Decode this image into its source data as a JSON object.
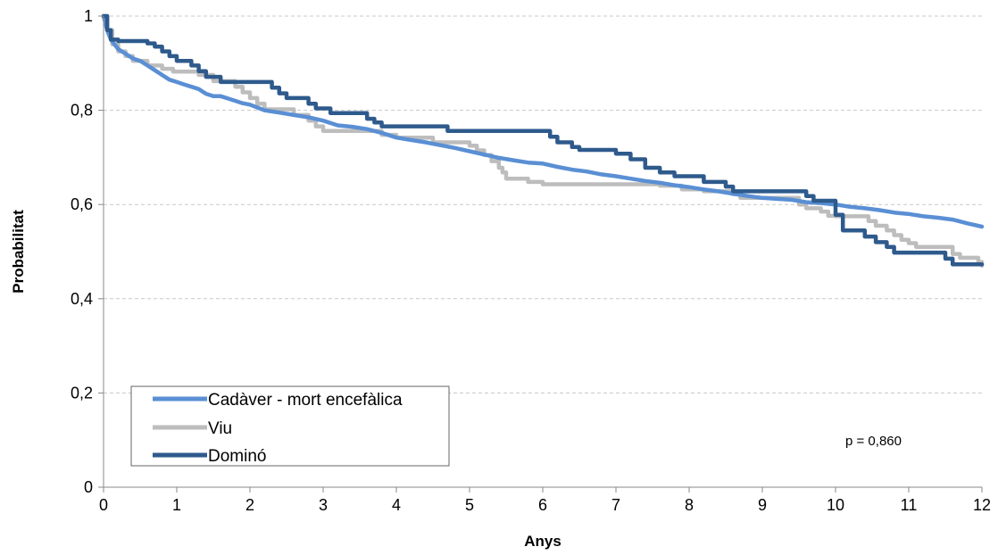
{
  "chart_data": {
    "type": "line",
    "title": "",
    "xlabel": "Anys",
    "ylabel": "Probabilitat",
    "xlim": [
      0,
      12
    ],
    "ylim": [
      0,
      1
    ],
    "x_ticks": [
      "0",
      "1",
      "2",
      "3",
      "4",
      "5",
      "6",
      "7",
      "8",
      "9",
      "10",
      "11",
      "12"
    ],
    "y_ticks": [
      "0",
      "0,2",
      "0,4",
      "0,6",
      "0,8",
      "1"
    ],
    "grid": "horizontal-dashed",
    "legend_position": "bottom-left",
    "annotation": "p = 0,860",
    "series": [
      {
        "name": "Cadàver - mort encefàlica",
        "color": "#5a8fd4",
        "step": false,
        "points": [
          [
            0,
            1
          ],
          [
            0.05,
            0.97
          ],
          [
            0.1,
            0.95
          ],
          [
            0.2,
            0.93
          ],
          [
            0.3,
            0.92
          ],
          [
            0.4,
            0.91
          ],
          [
            0.5,
            0.905
          ],
          [
            0.6,
            0.895
          ],
          [
            0.7,
            0.885
          ],
          [
            0.8,
            0.875
          ],
          [
            0.9,
            0.865
          ],
          [
            1.0,
            0.86
          ],
          [
            1.1,
            0.855
          ],
          [
            1.2,
            0.85
          ],
          [
            1.3,
            0.845
          ],
          [
            1.4,
            0.835
          ],
          [
            1.5,
            0.83
          ],
          [
            1.6,
            0.83
          ],
          [
            1.7,
            0.825
          ],
          [
            1.8,
            0.82
          ],
          [
            1.9,
            0.815
          ],
          [
            2.0,
            0.812
          ],
          [
            2.2,
            0.8
          ],
          [
            2.4,
            0.795
          ],
          [
            2.6,
            0.79
          ],
          [
            2.8,
            0.785
          ],
          [
            3.0,
            0.778
          ],
          [
            3.2,
            0.768
          ],
          [
            3.4,
            0.765
          ],
          [
            3.6,
            0.76
          ],
          [
            3.8,
            0.752
          ],
          [
            4.0,
            0.742
          ],
          [
            4.2,
            0.737
          ],
          [
            4.4,
            0.732
          ],
          [
            4.6,
            0.726
          ],
          [
            4.8,
            0.72
          ],
          [
            5.0,
            0.713
          ],
          [
            5.2,
            0.706
          ],
          [
            5.4,
            0.699
          ],
          [
            5.6,
            0.694
          ],
          [
            5.8,
            0.689
          ],
          [
            6.0,
            0.687
          ],
          [
            6.2,
            0.68
          ],
          [
            6.4,
            0.674
          ],
          [
            6.6,
            0.67
          ],
          [
            6.8,
            0.664
          ],
          [
            7.0,
            0.66
          ],
          [
            7.2,
            0.655
          ],
          [
            7.4,
            0.65
          ],
          [
            7.6,
            0.646
          ],
          [
            7.8,
            0.641
          ],
          [
            8.0,
            0.637
          ],
          [
            8.2,
            0.632
          ],
          [
            8.4,
            0.628
          ],
          [
            8.6,
            0.623
          ],
          [
            8.8,
            0.618
          ],
          [
            9.0,
            0.614
          ],
          [
            9.2,
            0.612
          ],
          [
            9.4,
            0.61
          ],
          [
            9.6,
            0.605
          ],
          [
            9.8,
            0.603
          ],
          [
            10.0,
            0.6
          ],
          [
            10.2,
            0.595
          ],
          [
            10.4,
            0.592
          ],
          [
            10.6,
            0.588
          ],
          [
            10.8,
            0.583
          ],
          [
            11.0,
            0.58
          ],
          [
            11.2,
            0.575
          ],
          [
            11.4,
            0.572
          ],
          [
            11.6,
            0.568
          ],
          [
            11.8,
            0.56
          ],
          [
            12.0,
            0.553
          ]
        ]
      },
      {
        "name": "Viu",
        "color": "#bdbdbd",
        "step": true,
        "points": [
          [
            0,
            1
          ],
          [
            0.05,
            0.97
          ],
          [
            0.12,
            0.94
          ],
          [
            0.2,
            0.925
          ],
          [
            0.3,
            0.915
          ],
          [
            0.4,
            0.905
          ],
          [
            0.6,
            0.895
          ],
          [
            0.8,
            0.888
          ],
          [
            0.95,
            0.882
          ],
          [
            1.3,
            0.875
          ],
          [
            1.5,
            0.862
          ],
          [
            1.8,
            0.85
          ],
          [
            1.9,
            0.838
          ],
          [
            2.0,
            0.826
          ],
          [
            2.1,
            0.814
          ],
          [
            2.2,
            0.802
          ],
          [
            2.6,
            0.79
          ],
          [
            2.8,
            0.778
          ],
          [
            2.9,
            0.766
          ],
          [
            3.0,
            0.756
          ],
          [
            3.8,
            0.748
          ],
          [
            4.0,
            0.742
          ],
          [
            4.5,
            0.732
          ],
          [
            5.0,
            0.725
          ],
          [
            5.1,
            0.715
          ],
          [
            5.2,
            0.705
          ],
          [
            5.3,
            0.692
          ],
          [
            5.4,
            0.678
          ],
          [
            5.45,
            0.668
          ],
          [
            5.5,
            0.655
          ],
          [
            5.8,
            0.648
          ],
          [
            6.0,
            0.643
          ],
          [
            7.6,
            0.64
          ],
          [
            7.9,
            0.632
          ],
          [
            8.2,
            0.628
          ],
          [
            8.6,
            0.622
          ],
          [
            8.7,
            0.614
          ],
          [
            9.5,
            0.6
          ],
          [
            9.6,
            0.592
          ],
          [
            9.8,
            0.585
          ],
          [
            9.9,
            0.576
          ],
          [
            10.0,
            0.575
          ],
          [
            10.45,
            0.565
          ],
          [
            10.55,
            0.555
          ],
          [
            10.7,
            0.545
          ],
          [
            10.8,
            0.535
          ],
          [
            10.9,
            0.525
          ],
          [
            11.0,
            0.518
          ],
          [
            11.1,
            0.51
          ],
          [
            11.6,
            0.495
          ],
          [
            11.7,
            0.487
          ],
          [
            11.95,
            0.478
          ],
          [
            12.0,
            0.47
          ]
        ]
      },
      {
        "name": "Dominó",
        "color": "#2e5a8c",
        "step": true,
        "points": [
          [
            0,
            1
          ],
          [
            0.05,
            0.97
          ],
          [
            0.1,
            0.95
          ],
          [
            0.2,
            0.947
          ],
          [
            0.6,
            0.942
          ],
          [
            0.7,
            0.935
          ],
          [
            0.8,
            0.925
          ],
          [
            0.9,
            0.915
          ],
          [
            1.0,
            0.905
          ],
          [
            1.2,
            0.895
          ],
          [
            1.3,
            0.883
          ],
          [
            1.4,
            0.871
          ],
          [
            1.6,
            0.86
          ],
          [
            2.3,
            0.848
          ],
          [
            2.4,
            0.836
          ],
          [
            2.5,
            0.826
          ],
          [
            2.8,
            0.814
          ],
          [
            2.9,
            0.804
          ],
          [
            3.1,
            0.794
          ],
          [
            3.6,
            0.782
          ],
          [
            3.7,
            0.774
          ],
          [
            3.8,
            0.766
          ],
          [
            4.7,
            0.756
          ],
          [
            6.1,
            0.744
          ],
          [
            6.2,
            0.732
          ],
          [
            6.4,
            0.722
          ],
          [
            6.5,
            0.716
          ],
          [
            7.0,
            0.708
          ],
          [
            7.2,
            0.696
          ],
          [
            7.4,
            0.678
          ],
          [
            7.6,
            0.668
          ],
          [
            7.8,
            0.66
          ],
          [
            8.2,
            0.648
          ],
          [
            8.5,
            0.638
          ],
          [
            8.6,
            0.628
          ],
          [
            9.6,
            0.618
          ],
          [
            9.7,
            0.608
          ],
          [
            10.0,
            0.578
          ],
          [
            10.1,
            0.545
          ],
          [
            10.4,
            0.532
          ],
          [
            10.55,
            0.52
          ],
          [
            10.7,
            0.51
          ],
          [
            10.8,
            0.498
          ],
          [
            11.5,
            0.485
          ],
          [
            11.6,
            0.473
          ],
          [
            12.0,
            0.473
          ]
        ]
      }
    ]
  }
}
